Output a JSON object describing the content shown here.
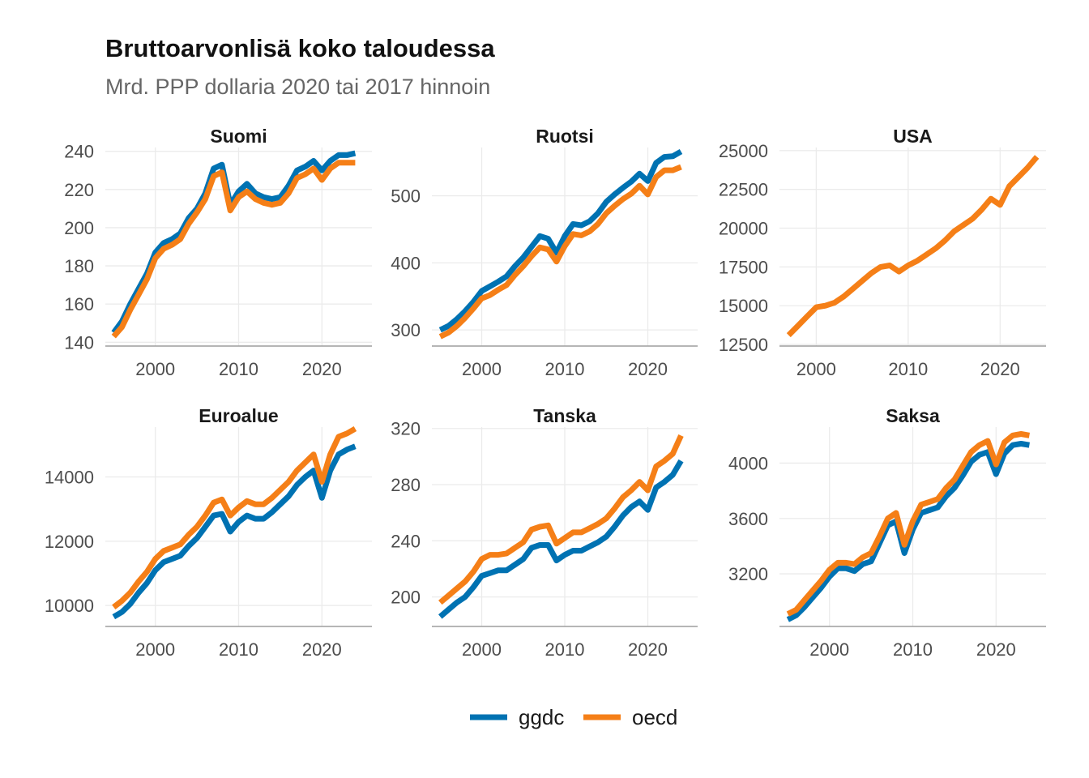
{
  "title": "Bruttoarvonlisä koko taloudessa",
  "subtitle": "Mrd. PPP dollaria 2020 tai 2017 hinnoin",
  "colors": {
    "ggdc": "#0072B2",
    "oecd": "#F57F17",
    "grid": "#EBEBEB",
    "axis": "#9E9E9E",
    "tick_text": "#4D4D4D",
    "strip_text": "#1A1A1A"
  },
  "legend": {
    "position": "bottom",
    "items": [
      {
        "key": "ggdc",
        "label": "ggdc"
      },
      {
        "key": "oecd",
        "label": "oecd"
      }
    ]
  },
  "chart_data": [
    {
      "type": "line",
      "panel": "Suomi",
      "x_ticks": [
        2000,
        2010,
        2020
      ],
      "y_ticks": [
        140,
        160,
        180,
        200,
        220,
        240
      ],
      "xlim": [
        1994,
        2026
      ],
      "ylim": [
        138,
        242
      ],
      "x": [
        1995,
        1996,
        1997,
        1998,
        1999,
        2000,
        2001,
        2002,
        2003,
        2004,
        2005,
        2006,
        2007,
        2008,
        2009,
        2010,
        2011,
        2012,
        2013,
        2014,
        2015,
        2016,
        2017,
        2018,
        2019,
        2020,
        2021,
        2022,
        2023,
        2024
      ],
      "series": [
        {
          "name": "ggdc",
          "values": [
            145,
            151,
            160,
            168,
            176,
            187,
            192,
            194,
            197,
            205,
            210,
            218,
            231,
            233,
            212,
            219,
            223,
            218,
            216,
            215,
            216,
            222,
            230,
            232,
            235,
            230,
            235,
            238,
            238,
            239
          ]
        },
        {
          "name": "oecd",
          "values": [
            143,
            148,
            157,
            165,
            173,
            184,
            189,
            191,
            194,
            202,
            208,
            215,
            227,
            229,
            209,
            216,
            219,
            215,
            213,
            212,
            213,
            218,
            226,
            228,
            231,
            225,
            231,
            234,
            234,
            234
          ]
        }
      ]
    },
    {
      "type": "line",
      "panel": "Ruotsi",
      "x_ticks": [
        2000,
        2010,
        2020
      ],
      "y_ticks": [
        300,
        400,
        500
      ],
      "xlim": [
        1994,
        2026
      ],
      "ylim": [
        276,
        572
      ],
      "x": [
        1995,
        1996,
        1997,
        1998,
        1999,
        2000,
        2001,
        2002,
        2003,
        2004,
        2005,
        2006,
        2007,
        2008,
        2009,
        2010,
        2011,
        2012,
        2013,
        2014,
        2015,
        2016,
        2017,
        2018,
        2019,
        2020,
        2021,
        2022,
        2023,
        2024
      ],
      "series": [
        {
          "name": "ggdc",
          "values": [
            300,
            306,
            316,
            328,
            342,
            358,
            365,
            372,
            380,
            395,
            408,
            424,
            440,
            436,
            415,
            440,
            458,
            456,
            462,
            474,
            491,
            502,
            512,
            521,
            533,
            522,
            549,
            558,
            559,
            566
          ]
        },
        {
          "name": "oecd",
          "values": [
            290,
            296,
            306,
            318,
            332,
            347,
            352,
            360,
            367,
            382,
            395,
            410,
            423,
            420,
            402,
            425,
            443,
            441,
            447,
            458,
            474,
            485,
            495,
            503,
            515,
            502,
            528,
            538,
            538,
            543
          ]
        }
      ]
    },
    {
      "type": "line",
      "panel": "USA",
      "x_ticks": [
        2000,
        2010,
        2020
      ],
      "y_ticks": [
        12500,
        15000,
        17500,
        20000,
        22500,
        25000
      ],
      "xlim": [
        1996,
        2025
      ],
      "ylim": [
        12400,
        25200
      ],
      "x": [
        1997,
        1998,
        1999,
        2000,
        2001,
        2002,
        2003,
        2004,
        2005,
        2006,
        2007,
        2008,
        2009,
        2010,
        2011,
        2012,
        2013,
        2014,
        2015,
        2016,
        2017,
        2018,
        2019,
        2020,
        2021,
        2022,
        2023,
        2024
      ],
      "series": [
        {
          "name": "oecd",
          "values": [
            13100,
            13700,
            14300,
            14900,
            15000,
            15200,
            15600,
            16100,
            16600,
            17100,
            17500,
            17600,
            17200,
            17600,
            17900,
            18300,
            18700,
            19200,
            19800,
            20200,
            20600,
            21200,
            21900,
            21500,
            22700,
            23300,
            23900,
            24600
          ]
        }
      ]
    },
    {
      "type": "line",
      "panel": "Euroalue",
      "x_ticks": [
        2000,
        2010,
        2020
      ],
      "y_ticks": [
        10000,
        12000,
        14000
      ],
      "xlim": [
        1994,
        2026
      ],
      "ylim": [
        9350,
        15550
      ],
      "x": [
        1995,
        1996,
        1997,
        1998,
        1999,
        2000,
        2001,
        2002,
        2003,
        2004,
        2005,
        2006,
        2007,
        2008,
        2009,
        2010,
        2011,
        2012,
        2013,
        2014,
        2015,
        2016,
        2017,
        2018,
        2019,
        2020,
        2021,
        2022,
        2023,
        2024
      ],
      "series": [
        {
          "name": "ggdc",
          "values": [
            9650,
            9800,
            10050,
            10400,
            10700,
            11100,
            11350,
            11450,
            11550,
            11850,
            12100,
            12450,
            12800,
            12850,
            12300,
            12600,
            12800,
            12700,
            12700,
            12900,
            13150,
            13400,
            13750,
            14000,
            14200,
            13350,
            14200,
            14700,
            14850,
            14950
          ]
        },
        {
          "name": "oecd",
          "values": [
            9950,
            10150,
            10400,
            10750,
            11050,
            11450,
            11700,
            11800,
            11900,
            12200,
            12450,
            12800,
            13200,
            13300,
            12800,
            13050,
            13250,
            13150,
            13150,
            13350,
            13600,
            13850,
            14200,
            14450,
            14700,
            13850,
            14700,
            15250,
            15350,
            15500
          ]
        }
      ]
    },
    {
      "type": "line",
      "panel": "Tanska",
      "x_ticks": [
        2000,
        2010,
        2020
      ],
      "y_ticks": [
        200,
        240,
        280,
        320
      ],
      "xlim": [
        1994,
        2026
      ],
      "ylim": [
        179,
        321
      ],
      "x": [
        1995,
        1996,
        1997,
        1998,
        1999,
        2000,
        2001,
        2002,
        2003,
        2004,
        2005,
        2006,
        2007,
        2008,
        2009,
        2010,
        2011,
        2012,
        2013,
        2014,
        2015,
        2016,
        2017,
        2018,
        2019,
        2020,
        2021,
        2022,
        2023,
        2024
      ],
      "series": [
        {
          "name": "ggdc",
          "values": [
            186,
            191,
            196,
            200,
            207,
            215,
            217,
            219,
            219,
            223,
            227,
            235,
            237,
            237,
            226,
            230,
            233,
            233,
            236,
            239,
            243,
            250,
            258,
            264,
            268,
            262,
            278,
            282,
            287,
            297
          ]
        },
        {
          "name": "oecd",
          "values": [
            196,
            201,
            206,
            211,
            218,
            227,
            230,
            230,
            231,
            235,
            239,
            248,
            250,
            251,
            238,
            242,
            246,
            246,
            249,
            252,
            256,
            263,
            271,
            276,
            282,
            276,
            293,
            297,
            302,
            315
          ]
        }
      ]
    },
    {
      "type": "line",
      "panel": "Saksa",
      "x_ticks": [
        2000,
        2010,
        2020
      ],
      "y_ticks": [
        3200,
        3600,
        4000
      ],
      "xlim": [
        1994,
        2026
      ],
      "ylim": [
        2820,
        4260
      ],
      "x": [
        1995,
        1996,
        1997,
        1998,
        1999,
        2000,
        2001,
        2002,
        2003,
        2004,
        2005,
        2006,
        2007,
        2008,
        2009,
        2010,
        2011,
        2012,
        2013,
        2014,
        2015,
        2016,
        2017,
        2018,
        2019,
        2020,
        2021,
        2022,
        2023,
        2024
      ],
      "series": [
        {
          "name": "ggdc",
          "values": [
            2870,
            2900,
            2960,
            3030,
            3100,
            3180,
            3240,
            3240,
            3220,
            3270,
            3290,
            3420,
            3550,
            3580,
            3350,
            3520,
            3640,
            3660,
            3680,
            3760,
            3820,
            3910,
            4010,
            4060,
            4080,
            3920,
            4070,
            4130,
            4140,
            4130
          ]
        },
        {
          "name": "oecd",
          "values": [
            2910,
            2940,
            3010,
            3080,
            3150,
            3230,
            3280,
            3280,
            3270,
            3320,
            3350,
            3470,
            3600,
            3640,
            3410,
            3580,
            3700,
            3720,
            3740,
            3820,
            3880,
            3980,
            4080,
            4130,
            4160,
            3990,
            4150,
            4200,
            4210,
            4200
          ]
        }
      ]
    }
  ]
}
